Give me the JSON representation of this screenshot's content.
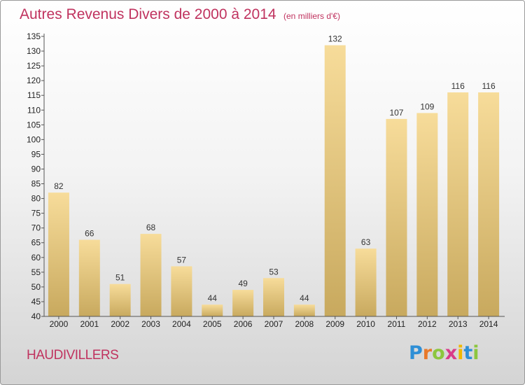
{
  "chart_data": {
    "type": "bar",
    "title": "Autres Revenus Divers de 2000 à 2014",
    "subtitle": "(en milliers d'€)",
    "categories": [
      "2000",
      "2001",
      "2002",
      "2003",
      "2004",
      "2005",
      "2006",
      "2007",
      "2008",
      "2009",
      "2010",
      "2011",
      "2012",
      "2013",
      "2014"
    ],
    "values": [
      82,
      66,
      51,
      68,
      57,
      44,
      49,
      53,
      44,
      132,
      63,
      107,
      109,
      116,
      116
    ],
    "ylim": [
      40,
      135
    ],
    "yticks": [
      40,
      45,
      50,
      55,
      60,
      65,
      70,
      75,
      80,
      85,
      90,
      95,
      100,
      105,
      110,
      115,
      120,
      125,
      130,
      135
    ],
    "grid": false,
    "bar_color": "#e8cc85"
  },
  "footer": {
    "commune": "HAUDIVILLERS",
    "logo_letters": [
      "P",
      "r",
      "o",
      "x",
      "i",
      "t",
      "i"
    ],
    "logo_colors": [
      "#2e8fd6",
      "#e8792a",
      "#8cc63e",
      "#d93a8a",
      "#f0b800",
      "#2e8fd6",
      "#8cc63e"
    ]
  }
}
